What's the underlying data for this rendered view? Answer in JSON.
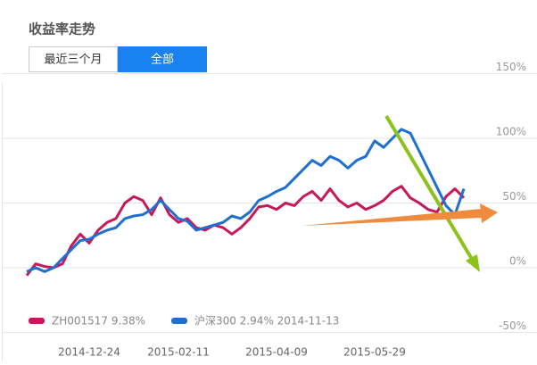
{
  "header": {
    "title": "收益率走势"
  },
  "tabs": [
    "最近三个月",
    "全部"
  ],
  "chart_data": {
    "type": "line",
    "categories": [
      null,
      null,
      null,
      null,
      null,
      null,
      null,
      "2014-12-24",
      null,
      null,
      null,
      null,
      null,
      null,
      null,
      null,
      null,
      "2015-02-11",
      null,
      null,
      null,
      null,
      null,
      null,
      null,
      null,
      null,
      null,
      "2015-04-09",
      null,
      null,
      null,
      null,
      null,
      null,
      null,
      null,
      null,
      null,
      "2015-05-29",
      null,
      null,
      null,
      null,
      null,
      null,
      null,
      null,
      null,
      null
    ],
    "series": [
      {
        "name": "ZH001517 9.38%",
        "color": "#c8185a",
        "values": [
          -6,
          3,
          1,
          0,
          3,
          17,
          26,
          19,
          29,
          35,
          38,
          50,
          55,
          52,
          41,
          54,
          41,
          35,
          38,
          31,
          29,
          33,
          31,
          26,
          31,
          38,
          47,
          48,
          45,
          50,
          48,
          55,
          59,
          52,
          61,
          52,
          47,
          50,
          45,
          48,
          52,
          59,
          63,
          54,
          50,
          45,
          43,
          55,
          61,
          54
        ]
      },
      {
        "name": "沪深300 2.94% 2014-11-13",
        "color": "#1f6fd0",
        "values": [
          -3,
          0,
          -3,
          0,
          7,
          14,
          21,
          22,
          26,
          29,
          31,
          38,
          40,
          41,
          45,
          52,
          45,
          38,
          36,
          29,
          31,
          33,
          35,
          40,
          38,
          43,
          52,
          55,
          59,
          62,
          69,
          76,
          83,
          79,
          86,
          83,
          77,
          83,
          86,
          98,
          93,
          100,
          107,
          104,
          90,
          76,
          62,
          48,
          41,
          61
        ]
      }
    ],
    "ylim": [
      -50,
      150
    ],
    "yticks": [
      {
        "value": 150,
        "label": "150%"
      },
      {
        "value": 100,
        "label": "100%"
      },
      {
        "value": 50,
        "label": "50%"
      },
      {
        "value": 0,
        "label": "0%"
      },
      {
        "value": -50,
        "label": "-50%"
      }
    ],
    "grid": true
  }
}
